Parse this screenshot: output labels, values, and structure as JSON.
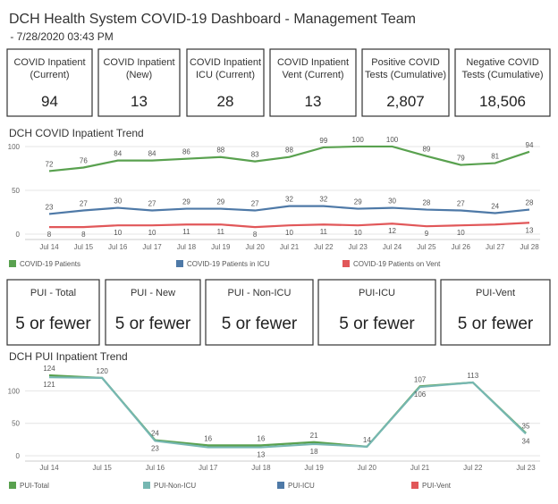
{
  "header": {
    "title": "DCH Health System COVID-19 Dashboard - Management Team",
    "subtitle": " - 7/28/2020 03:43 PM"
  },
  "kpis": [
    {
      "title": [
        "COVID Inpatient",
        "(Current)"
      ],
      "value": "94"
    },
    {
      "title": [
        "COVID Inpatient",
        "(New)"
      ],
      "value": "13"
    },
    {
      "title": [
        "COVID Inpatient",
        "ICU (Current)"
      ],
      "value": "28"
    },
    {
      "title": [
        "COVID Inpatient",
        "Vent (Current)"
      ],
      "value": "13"
    },
    {
      "title": [
        "Positive COVID",
        "Tests (Cumulative)"
      ],
      "value": "2,807"
    },
    {
      "title": [
        "Negative COVID",
        "Tests (Cumulative)"
      ],
      "value": "18,506"
    }
  ],
  "pui_cards": [
    {
      "title": "PUI - Total",
      "value": "5 or fewer"
    },
    {
      "title": "PUI - New",
      "value": "5 or fewer"
    },
    {
      "title": "PUI - Non-ICU",
      "value": "5 or fewer"
    },
    {
      "title": "PUI-ICU",
      "value": "5 or fewer"
    },
    {
      "title": "PUI-Vent",
      "value": "5 or fewer"
    }
  ],
  "chart_data": [
    {
      "type": "line",
      "title": "DCH COVID Inpatient Trend",
      "categories": [
        "Jul 14",
        "Jul 15",
        "Jul 16",
        "Jul 17",
        "Jul 18",
        "Jul 19",
        "Jul 20",
        "Jul 21",
        "Jul 22",
        "Jul 23",
        "Jul 24",
        "Jul 25",
        "Jul 26",
        "Jul 27",
        "Jul 28"
      ],
      "ylim": [
        0,
        102
      ],
      "yticks": [
        0,
        50,
        100
      ],
      "series": [
        {
          "name": "COVID-19 Patients",
          "color": "#59a14f",
          "values": [
            72,
            76,
            84,
            84,
            86,
            88,
            83,
            88,
            99,
            100,
            100,
            89,
            79,
            81,
            94
          ]
        },
        {
          "name": "COVID-19 Patients in ICU",
          "color": "#4e79a7",
          "values": [
            23,
            27,
            30,
            27,
            29,
            29,
            27,
            32,
            32,
            29,
            30,
            28,
            27,
            24,
            28
          ]
        },
        {
          "name": "COVID-19 Patients on Vent",
          "color": "#e15759",
          "values": [
            8,
            8,
            10,
            10,
            11,
            11,
            8,
            10,
            11,
            10,
            12,
            9,
            10,
            11,
            13
          ],
          "value_labels": [
            "8",
            "8",
            "10",
            "10",
            "11",
            "11",
            "8",
            "10",
            "11",
            "10",
            "12",
            "9",
            "10",
            null,
            "13"
          ]
        }
      ]
    },
    {
      "type": "line",
      "title": "DCH PUI Inpatient Trend",
      "categories": [
        "Jul 14",
        "Jul 15",
        "Jul 16",
        "Jul 17",
        "Jul 18",
        "Jul 19",
        "Jul 20",
        "Jul 21",
        "Jul 22",
        "Jul 23"
      ],
      "ylim": [
        0,
        135
      ],
      "yticks": [
        0,
        50,
        100
      ],
      "series": [
        {
          "name": "PUI-Total",
          "color": "#59a14f",
          "values": [
            124,
            120,
            24,
            16,
            16,
            21,
            14,
            107,
            113,
            35
          ]
        },
        {
          "name": "PUI-Non-ICU",
          "color": "#76b7b2",
          "values": [
            121,
            120,
            23,
            13,
            13,
            18,
            14,
            106,
            113,
            34
          ],
          "value_labels": [
            "121",
            null,
            "23",
            null,
            "13",
            "18",
            null,
            "106",
            null,
            "34"
          ]
        },
        {
          "name": "PUI-ICU",
          "color": "#4e79a7",
          "values": [
            null,
            null,
            null,
            null,
            null,
            null,
            null,
            null,
            null,
            null
          ]
        },
        {
          "name": "PUI-Vent",
          "color": "#e15759",
          "values": [
            null,
            null,
            null,
            null,
            null,
            null,
            null,
            null,
            null,
            null
          ]
        }
      ]
    }
  ]
}
